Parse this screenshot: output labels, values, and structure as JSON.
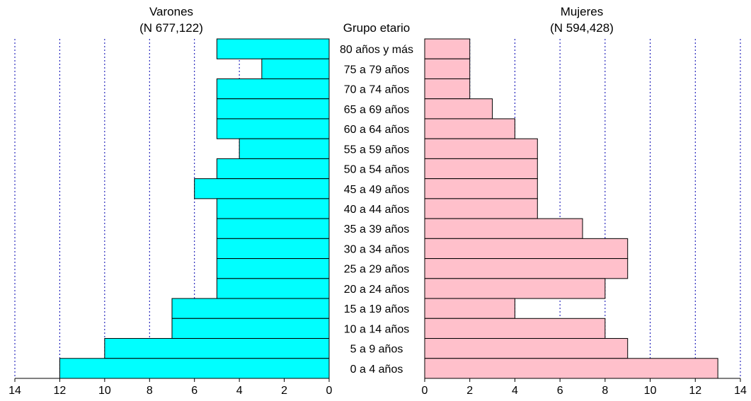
{
  "chart_data": {
    "type": "bar",
    "chart_kind": "population pyramid",
    "orientation": "horizontal",
    "category_header": "Grupo etario",
    "categories": [
      "80 años y más",
      "75 a 79 años",
      "70 a 74 años",
      "65 a 69 años",
      "60 a 64 años",
      "55 a 59 años",
      "50 a 54 años",
      "45 a 49 años",
      "40 a 44 años",
      "35 a 39 años",
      "30 a 34 años",
      "25 a 29 años",
      "20 a 24 años",
      "15 a 19 años",
      "10 a 14 años",
      "5 a 9 años",
      "0 a 4 años"
    ],
    "series": [
      {
        "name": "Varones",
        "subtitle": "(N 677,122)",
        "side": "left",
        "color": "#00ffff",
        "values": [
          5,
          3,
          5,
          5,
          5,
          4,
          5,
          6,
          5,
          5,
          5,
          5,
          5,
          7,
          7,
          10,
          12
        ]
      },
      {
        "name": "Mujeres",
        "subtitle": "(N 594,428)",
        "side": "right",
        "color": "#ffc0cb",
        "values": [
          2,
          2,
          2,
          3,
          4,
          5,
          5,
          5,
          5,
          7,
          9,
          9,
          8,
          4,
          8,
          9,
          13
        ]
      }
    ],
    "left_axis": {
      "range": [
        14,
        0
      ],
      "ticks": [
        "14",
        "12",
        "10",
        "8",
        "6",
        "4",
        "2",
        "0"
      ]
    },
    "right_axis": {
      "range": [
        0,
        14
      ],
      "ticks": [
        "0",
        "2",
        "4",
        "6",
        "8",
        "10",
        "12",
        "14"
      ]
    },
    "grid": "vertical dotted lines at every 2 units",
    "grid_color": "#0000b0",
    "bar_outline_color": "#000000",
    "legend": "none"
  }
}
